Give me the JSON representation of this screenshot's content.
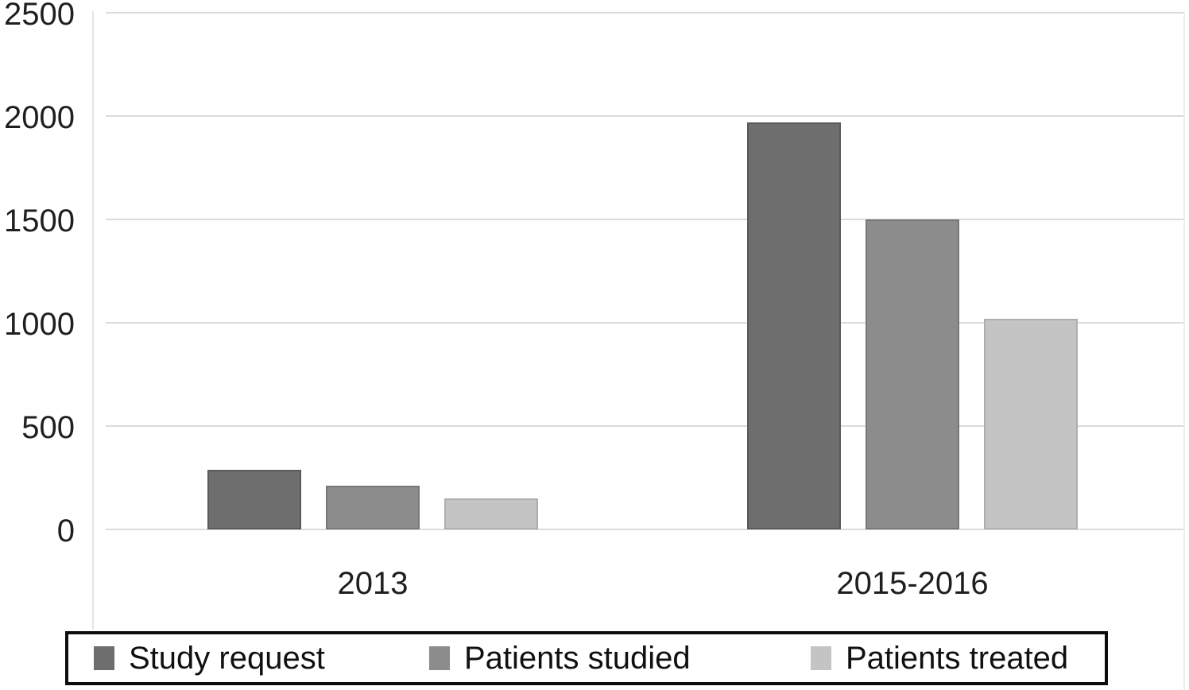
{
  "chart_data": {
    "type": "bar",
    "title": "",
    "xlabel": "",
    "ylabel": "",
    "categories": [
      "2013",
      "2015-2016"
    ],
    "series": [
      {
        "name": "Study request",
        "color": "#6e6e6e",
        "border_color": "#5a5a5a",
        "values": [
          290,
          1970
        ]
      },
      {
        "name": "Patients studied",
        "color": "#8c8c8c",
        "border_color": "#787878",
        "values": [
          210,
          1500
        ]
      },
      {
        "name": "Patients treated",
        "color": "#c4c4c4",
        "border_color": "#aeaeae",
        "values": [
          150,
          1020
        ]
      }
    ],
    "ylim": [
      0,
      2500
    ],
    "yticks": [
      0,
      500,
      1000,
      1500,
      2000,
      2500
    ],
    "grid": true,
    "gridline_color": "#dbdbdb",
    "legend_position": "bottom",
    "legend_border_color": "#0d0d0d"
  }
}
